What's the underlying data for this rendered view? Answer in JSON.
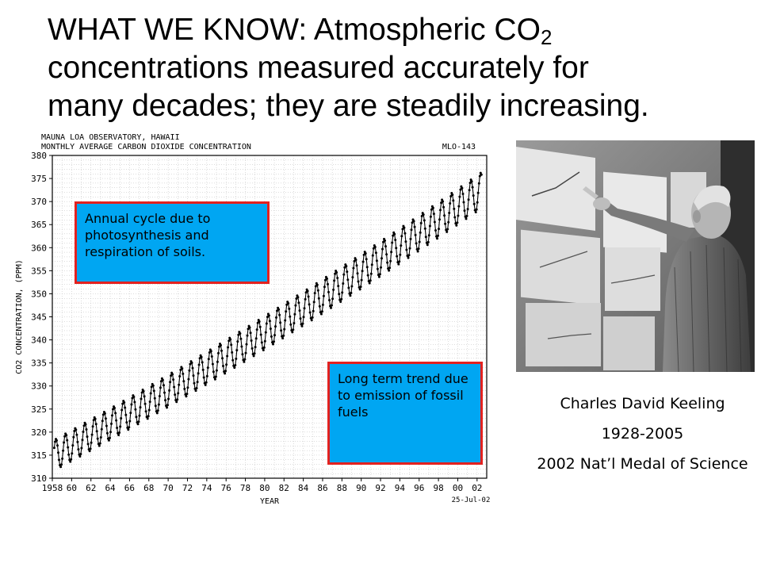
{
  "title": {
    "line1_pre": "WHAT WE KNOW:  Atmospheric CO",
    "line1_sub": "2",
    "line2": "concentrations measured accurately for",
    "line3": "many decades; they are steadily increasing."
  },
  "chart_data": {
    "type": "line",
    "header_line1": "MAUNA LOA OBSERVATORY, HAWAII",
    "header_line2": "MONTHLY AVERAGE CARBON DIOXIDE CONCENTRATION",
    "plot_id": "MLO-143",
    "date_stamp": "25-Jul-02",
    "xlabel": "YEAR",
    "ylabel": "CO2 CONCENTRATION, (PPM)",
    "xlim": [
      1958,
      2003
    ],
    "ylim": [
      310,
      380
    ],
    "grid": true,
    "x_tick_labels": [
      "1958",
      "60",
      "62",
      "64",
      "66",
      "68",
      "70",
      "72",
      "74",
      "76",
      "78",
      "80",
      "82",
      "84",
      "86",
      "88",
      "90",
      "92",
      "94",
      "96",
      "98",
      "00",
      "02"
    ],
    "y_tick_labels": [
      "310",
      "315",
      "320",
      "325",
      "330",
      "335",
      "340",
      "345",
      "350",
      "355",
      "360",
      "365",
      "370",
      "375",
      "380"
    ],
    "series": [
      {
        "trend": {
          "start_year": 1958.2,
          "start_value": 315.0,
          "end_year": 2002.5,
          "end_value": 372.5,
          "curvature": 7.0
        },
        "seasonal_amplitude": 3.3
      }
    ]
  },
  "annotations": {
    "annual_cycle": "Annual cycle due to photosynthesis and respiration of soils.",
    "long_term": "Long term trend due to emission of fossil fuels"
  },
  "caption": {
    "name": "Charles David Keeling",
    "years": "1928-2005",
    "award": "2002 Nat’l Medal of Science"
  }
}
